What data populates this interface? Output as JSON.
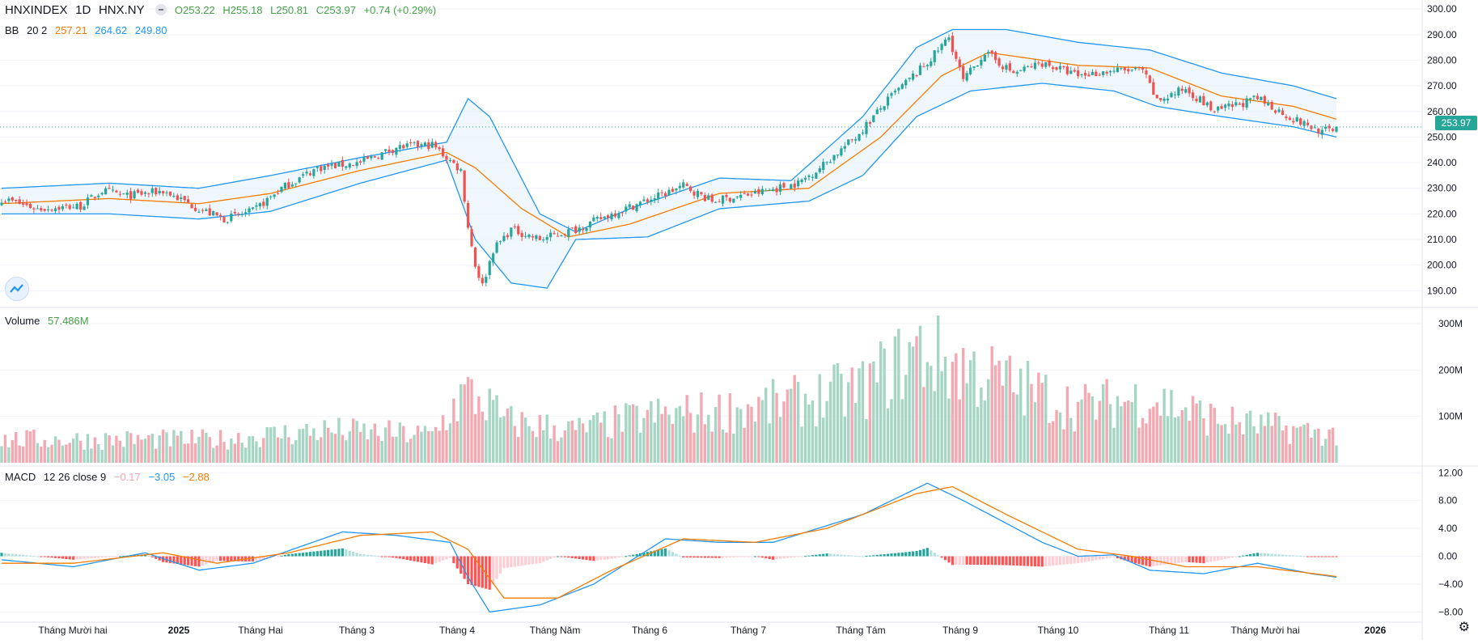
{
  "header": {
    "symbol": "HNXINDEX",
    "interval": "1D",
    "exchange": "HNX.NY",
    "open": "O253.22",
    "high": "H255.18",
    "low": "L250.81",
    "close": "C253.97",
    "change": "+0.74 (+0.29%)"
  },
  "bb": {
    "label": "BB",
    "params": "20 2",
    "basis": "257.21",
    "upper": "264.62",
    "lower": "249.80"
  },
  "volume": {
    "label": "Volume",
    "value": "57.486M"
  },
  "macd": {
    "label": "MACD",
    "params": "12 26 close 9",
    "hist": "−0.17",
    "macd": "−3.05",
    "signal": "−2.88"
  },
  "colors": {
    "up": "#26a69a",
    "down": "#ef5350",
    "vol_up": "#a5d6c4",
    "vol_down": "#f4a8b1",
    "bb_band": "#2196f3",
    "bb_basis": "#f57c00",
    "macd_line": "#2196f3",
    "signal_line": "#f57c00"
  },
  "last_price": "253.97",
  "chart_data": {
    "type": "candlestick",
    "x_axis_ticks": [
      "Tháng Mười hai",
      "2025",
      "Tháng Hai",
      "Tháng 3",
      "Tháng 4",
      "Tháng Năm",
      "Tháng 6",
      "Tháng 7",
      "Tháng Tám",
      "Tháng 9",
      "Tháng 10",
      "Tháng 11",
      "Tháng Mười hai",
      "2026"
    ],
    "price_axis_ticks": [
      "300.00",
      "290.00",
      "280.00",
      "270.00",
      "260.00",
      "250.00",
      "240.00",
      "230.00",
      "220.00",
      "210.00",
      "200.00",
      "190.00"
    ],
    "price_range": [
      186,
      301
    ],
    "volume_axis_ticks": [
      "300M",
      "200M",
      "100M"
    ],
    "volume_range": [
      0,
      330
    ],
    "macd_axis_ticks": [
      "12.00",
      "8.00",
      "4.00",
      "0.00",
      "−4.00",
      "−8.00"
    ],
    "macd_range": [
      -9,
      12.5
    ],
    "close_anchors": [
      [
        0,
        226
      ],
      [
        10,
        222
      ],
      [
        22,
        223
      ],
      [
        28,
        229
      ],
      [
        35,
        227
      ],
      [
        45,
        229
      ],
      [
        55,
        222
      ],
      [
        62,
        218
      ],
      [
        70,
        221
      ],
      [
        78,
        230
      ],
      [
        88,
        238
      ],
      [
        100,
        240
      ],
      [
        110,
        246
      ],
      [
        120,
        247
      ],
      [
        128,
        237
      ],
      [
        130,
        215
      ],
      [
        132,
        200
      ],
      [
        134,
        192
      ],
      [
        137,
        206
      ],
      [
        142,
        214
      ],
      [
        150,
        210
      ],
      [
        160,
        214
      ],
      [
        170,
        220
      ],
      [
        185,
        228
      ],
      [
        190,
        231
      ],
      [
        198,
        225
      ],
      [
        210,
        228
      ],
      [
        222,
        232
      ],
      [
        228,
        238
      ],
      [
        238,
        250
      ],
      [
        248,
        266
      ],
      [
        258,
        279
      ],
      [
        264,
        289
      ],
      [
        268,
        272
      ],
      [
        274,
        283
      ],
      [
        282,
        275
      ],
      [
        290,
        279
      ],
      [
        300,
        274
      ],
      [
        310,
        276
      ],
      [
        318,
        276
      ],
      [
        322,
        264
      ],
      [
        330,
        269
      ],
      [
        338,
        260
      ],
      [
        350,
        265
      ],
      [
        360,
        257
      ],
      [
        368,
        252
      ],
      [
        372,
        254
      ]
    ],
    "volume_anchors": [
      [
        0,
        50
      ],
      [
        60,
        50
      ],
      [
        90,
        70
      ],
      [
        120,
        60
      ],
      [
        129,
        150
      ],
      [
        135,
        130
      ],
      [
        140,
        90
      ],
      [
        160,
        70
      ],
      [
        180,
        100
      ],
      [
        200,
        110
      ],
      [
        220,
        130
      ],
      [
        240,
        160
      ],
      [
        255,
        240
      ],
      [
        270,
        200
      ],
      [
        300,
        120
      ],
      [
        320,
        140
      ],
      [
        340,
        90
      ],
      [
        372,
        60
      ]
    ],
    "bb_upper_anchors": [
      [
        0,
        230
      ],
      [
        30,
        232
      ],
      [
        55,
        230
      ],
      [
        75,
        235
      ],
      [
        100,
        242
      ],
      [
        124,
        248
      ],
      [
        130,
        265
      ],
      [
        136,
        258
      ],
      [
        150,
        220
      ],
      [
        160,
        213
      ],
      [
        175,
        222
      ],
      [
        200,
        234
      ],
      [
        220,
        233
      ],
      [
        240,
        258
      ],
      [
        255,
        285
      ],
      [
        265,
        292
      ],
      [
        280,
        292
      ],
      [
        300,
        287
      ],
      [
        320,
        284
      ],
      [
        340,
        275
      ],
      [
        360,
        270
      ],
      [
        372,
        265
      ]
    ],
    "bb_basis_anchors": [
      [
        0,
        224
      ],
      [
        30,
        226
      ],
      [
        55,
        224
      ],
      [
        75,
        228
      ],
      [
        100,
        237
      ],
      [
        124,
        244
      ],
      [
        132,
        238
      ],
      [
        145,
        222
      ],
      [
        158,
        211
      ],
      [
        175,
        216
      ],
      [
        200,
        228
      ],
      [
        225,
        230
      ],
      [
        245,
        250
      ],
      [
        262,
        274
      ],
      [
        275,
        283
      ],
      [
        300,
        278
      ],
      [
        320,
        277
      ],
      [
        340,
        266
      ],
      [
        360,
        262
      ],
      [
        372,
        257
      ]
    ],
    "bb_lower_anchors": [
      [
        0,
        220
      ],
      [
        30,
        220
      ],
      [
        55,
        218
      ],
      [
        75,
        221
      ],
      [
        100,
        232
      ],
      [
        124,
        241
      ],
      [
        132,
        210
      ],
      [
        142,
        193
      ],
      [
        152,
        191
      ],
      [
        160,
        210
      ],
      [
        180,
        211
      ],
      [
        200,
        222
      ],
      [
        225,
        225
      ],
      [
        240,
        235
      ],
      [
        255,
        258
      ],
      [
        270,
        268
      ],
      [
        290,
        271
      ],
      [
        310,
        268
      ],
      [
        322,
        262
      ],
      [
        340,
        258
      ],
      [
        360,
        254
      ],
      [
        372,
        250
      ]
    ],
    "macd_line_anchors": [
      [
        0,
        -0.5
      ],
      [
        20,
        -1.5
      ],
      [
        40,
        0.5
      ],
      [
        55,
        -2
      ],
      [
        70,
        -1
      ],
      [
        95,
        3.5
      ],
      [
        110,
        3
      ],
      [
        125,
        2
      ],
      [
        130,
        -3
      ],
      [
        136,
        -8
      ],
      [
        150,
        -7
      ],
      [
        165,
        -4
      ],
      [
        185,
        2.5
      ],
      [
        200,
        2
      ],
      [
        215,
        2
      ],
      [
        240,
        6
      ],
      [
        258,
        10.5
      ],
      [
        268,
        8
      ],
      [
        290,
        2
      ],
      [
        300,
        0
      ],
      [
        310,
        0.2
      ],
      [
        320,
        -2
      ],
      [
        335,
        -2.5
      ],
      [
        350,
        -1
      ],
      [
        365,
        -2.5
      ],
      [
        372,
        -3
      ]
    ],
    "signal_line_anchors": [
      [
        0,
        -1
      ],
      [
        20,
        -1
      ],
      [
        45,
        0.5
      ],
      [
        60,
        -1
      ],
      [
        80,
        0.5
      ],
      [
        100,
        3
      ],
      [
        120,
        3.5
      ],
      [
        130,
        1
      ],
      [
        140,
        -6
      ],
      [
        155,
        -6
      ],
      [
        170,
        -2
      ],
      [
        190,
        2.5
      ],
      [
        210,
        2
      ],
      [
        230,
        4
      ],
      [
        255,
        9
      ],
      [
        265,
        10
      ],
      [
        280,
        6
      ],
      [
        300,
        1
      ],
      [
        315,
        0
      ],
      [
        330,
        -1.5
      ],
      [
        350,
        -1.5
      ],
      [
        372,
        -2.9
      ]
    ],
    "bars": 373
  }
}
